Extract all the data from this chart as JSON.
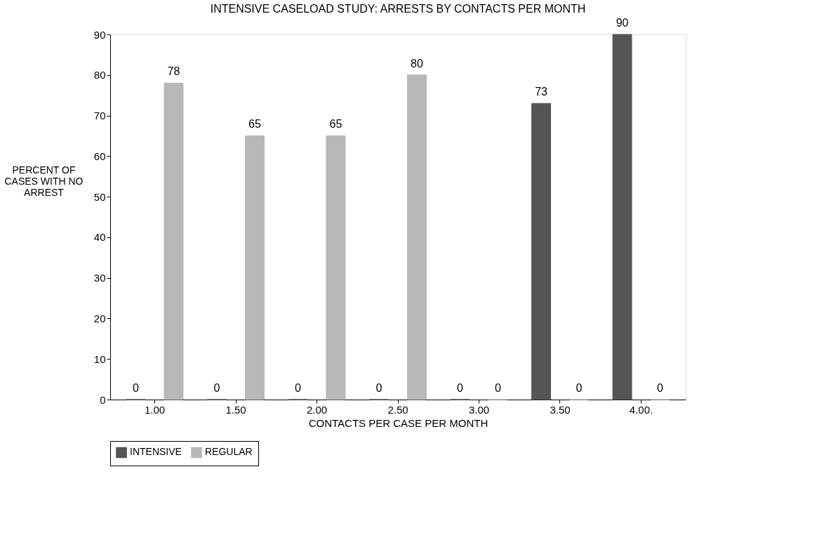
{
  "chart_data": {
    "type": "bar",
    "title": "INTENSIVE CASELOAD STUDY: ARRESTS BY CONTACTS PER MONTH",
    "xlabel": "CONTACTS PER CASE PER MONTH",
    "ylabel": "PERCENT OF CASES WITH NO ARREST",
    "categories": [
      "1.00",
      "1.50",
      "2.00",
      "2.50",
      "3.00",
      "3.50",
      "4.00."
    ],
    "series": [
      {
        "name": "INTENSIVE",
        "color": "#555555",
        "values": [
          0,
          0,
          0,
          0,
          0,
          73,
          90
        ]
      },
      {
        "name": "REGULAR",
        "color": "#b8b8b8",
        "values": [
          78,
          65,
          65,
          80,
          0,
          0,
          0
        ]
      }
    ],
    "ylim": [
      0,
      90
    ],
    "yticks": [
      0,
      10,
      20,
      30,
      40,
      50,
      60,
      70,
      80,
      90
    ],
    "data_labels": true,
    "grid": false,
    "legend": "bottom"
  }
}
